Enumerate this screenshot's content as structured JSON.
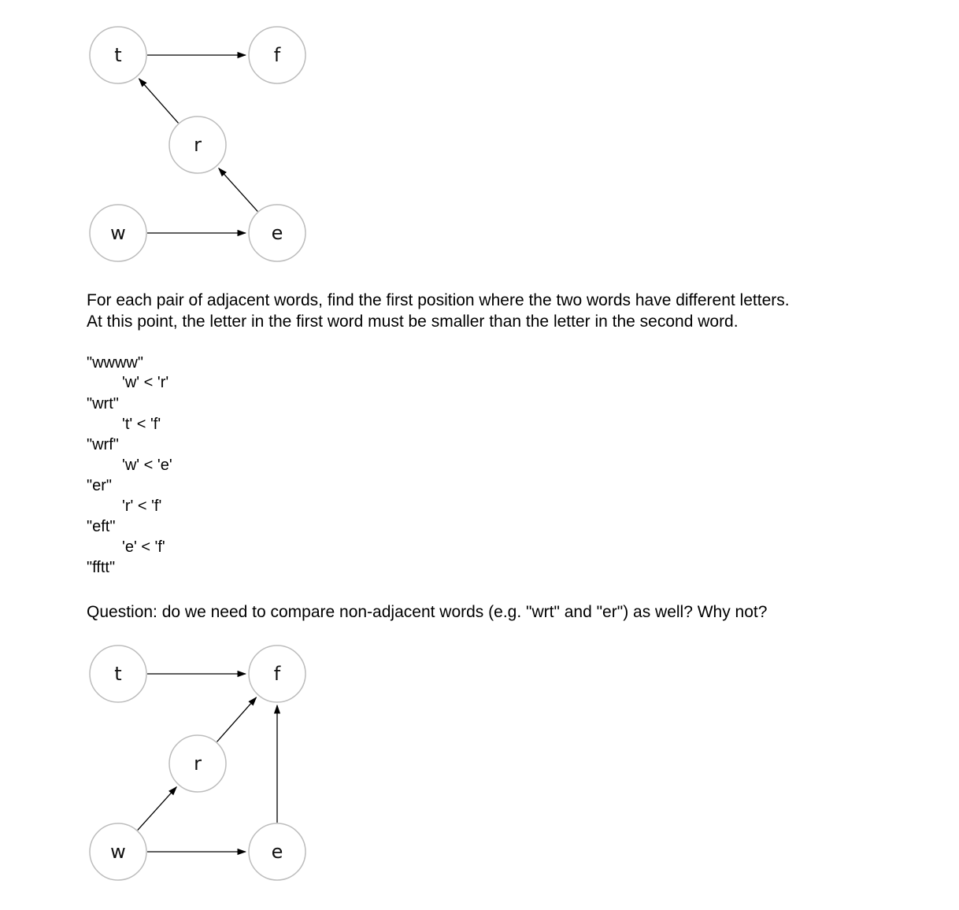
{
  "graph_top": {
    "nodes": [
      {
        "id": "t",
        "label": "t"
      },
      {
        "id": "f",
        "label": "f"
      },
      {
        "id": "r",
        "label": "r"
      },
      {
        "id": "w",
        "label": "w"
      },
      {
        "id": "e",
        "label": "e"
      }
    ],
    "edges": [
      {
        "from": "t",
        "to": "f"
      },
      {
        "from": "r",
        "to": "t"
      },
      {
        "from": "e",
        "to": "r"
      },
      {
        "from": "w",
        "to": "e"
      }
    ]
  },
  "explanation": {
    "line1": "For each pair of adjacent words, find the first position where the two words have different letters.",
    "line2": "At this point, the letter in the first word must be smaller than the letter in the second word."
  },
  "words": [
    "\"wwww\"",
    "\"wrt\"",
    "\"wrf\"",
    "\"er\"",
    "\"eft\"",
    "\"fftt\""
  ],
  "comparisons": [
    "'w' < 'r'",
    "'t' < 'f'",
    "'w' < 'e'",
    "'r' < 'f'",
    "'e' < 'f'"
  ],
  "question": "Question: do we need to compare non-adjacent words (e.g. \"wrt\" and \"er\") as well? Why not?",
  "graph_bottom": {
    "nodes": [
      {
        "id": "t",
        "label": "t"
      },
      {
        "id": "f",
        "label": "f"
      },
      {
        "id": "r",
        "label": "r"
      },
      {
        "id": "w",
        "label": "w"
      },
      {
        "id": "e",
        "label": "e"
      }
    ],
    "edges": [
      {
        "from": "t",
        "to": "f"
      },
      {
        "from": "r",
        "to": "f"
      },
      {
        "from": "w",
        "to": "r"
      },
      {
        "from": "e",
        "to": "f"
      },
      {
        "from": "w",
        "to": "e"
      }
    ]
  }
}
